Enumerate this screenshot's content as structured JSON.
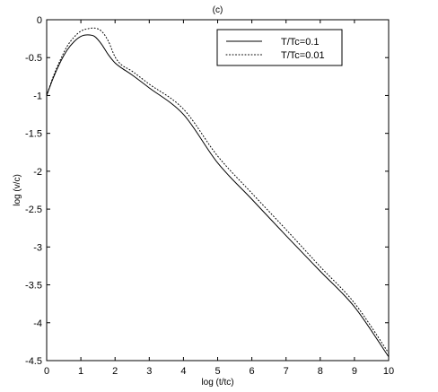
{
  "chart_data": {
    "type": "line",
    "title": "(c)",
    "xlabel": "log (t/tc)",
    "ylabel": "log (v/c)",
    "xlim": [
      0,
      10
    ],
    "ylim": [
      -4.5,
      0
    ],
    "x_ticks": [
      0,
      1,
      2,
      3,
      4,
      5,
      6,
      7,
      8,
      9,
      10
    ],
    "y_ticks": [
      0,
      -0.5,
      -1,
      -1.5,
      -2,
      -2.5,
      -3,
      -3.5,
      -4,
      -4.5
    ],
    "x_tick_labels": [
      "0",
      "1",
      "2",
      "3",
      "4",
      "5",
      "6",
      "7",
      "8",
      "9",
      "10"
    ],
    "y_tick_labels": [
      "0",
      "-0.5",
      "-1",
      "-1.5",
      "-2",
      "-2.5",
      "-3",
      "-3.5",
      "-4",
      "-4.5"
    ],
    "grid": false,
    "legend_position": "top-right",
    "series": [
      {
        "name": "T/Tc=0.1",
        "style": "solid",
        "color": "#000000",
        "x": [
          0,
          0.2,
          0.4,
          0.6,
          0.8,
          1.0,
          1.2,
          1.4,
          1.6,
          1.8,
          2.0,
          2.2,
          2.5,
          3,
          4,
          5,
          6,
          7,
          8,
          9,
          10
        ],
        "y": [
          -1.0,
          -0.76,
          -0.56,
          -0.4,
          -0.29,
          -0.22,
          -0.2,
          -0.22,
          -0.32,
          -0.46,
          -0.57,
          -0.64,
          -0.73,
          -0.9,
          -1.25,
          -1.89,
          -2.37,
          -2.85,
          -3.32,
          -3.79,
          -4.45
        ]
      },
      {
        "name": "T/Tc=0.01",
        "style": "dotted",
        "color": "#000000",
        "x": [
          0,
          0.2,
          0.4,
          0.6,
          0.8,
          1.0,
          1.2,
          1.4,
          1.6,
          1.8,
          2.0,
          2.2,
          2.5,
          3,
          4,
          5,
          6,
          7,
          8,
          9,
          10
        ],
        "y": [
          -1.0,
          -0.74,
          -0.53,
          -0.35,
          -0.23,
          -0.15,
          -0.12,
          -0.11,
          -0.15,
          -0.28,
          -0.49,
          -0.6,
          -0.68,
          -0.85,
          -1.18,
          -1.8,
          -2.29,
          -2.77,
          -3.26,
          -3.74,
          -4.4
        ]
      }
    ]
  }
}
